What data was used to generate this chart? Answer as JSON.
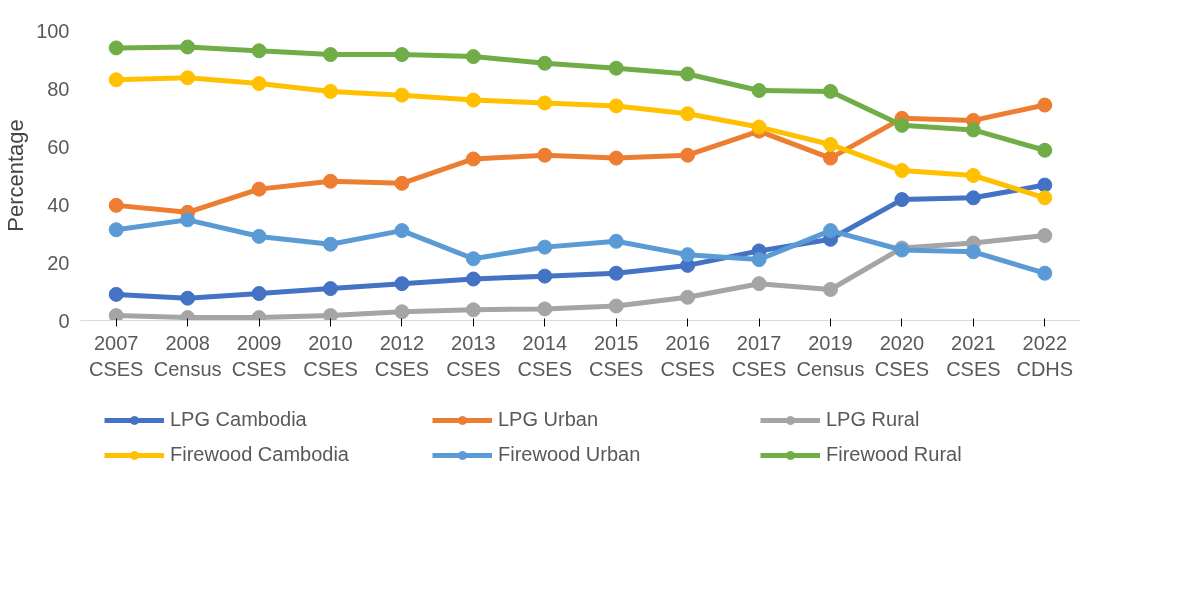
{
  "chart_data": {
    "type": "line",
    "ylabel": "Percentage",
    "categories": [
      "2007\nCSES",
      "2008\nCensus",
      "2009\nCSES",
      "2010\nCSES",
      "2012\nCSES",
      "2013\nCSES",
      "2014\nCSES",
      "2015\nCSES",
      "2016\nCSES",
      "2017\nCSES",
      "2019\nCensus",
      "2020\nCSES",
      "2021\nCSES",
      "2022\nCDHS"
    ],
    "ylim": [
      0,
      100
    ],
    "yticks": [
      0,
      20,
      40,
      60,
      80,
      100
    ],
    "grid": false,
    "legend": "bottom",
    "marker": "circle",
    "line_style": "solid",
    "series": [
      {
        "name": "LPG Cambodia",
        "color": "#4472c4",
        "values": [
          9,
          7.7,
          9.3,
          11,
          12.7,
          14.3,
          15.3,
          16.3,
          19,
          24,
          28,
          41.7,
          42.3,
          46.7
        ]
      },
      {
        "name": "LPG Urban",
        "color": "#ed7d31",
        "values": [
          39.7,
          37.3,
          45.3,
          48,
          47.3,
          55.7,
          57,
          56,
          57,
          65.3,
          56,
          69.7,
          69,
          74.3
        ]
      },
      {
        "name": "LPG Rural",
        "color": "#a5a5a5",
        "values": [
          1.7,
          1,
          1,
          1.7,
          3,
          3.7,
          4,
          5,
          8,
          12.7,
          10.7,
          25,
          26.7,
          29.3
        ]
      },
      {
        "name": "Firewood Cambodia",
        "color": "#ffc000",
        "values": [
          83,
          83.7,
          81.7,
          79,
          77.7,
          76,
          75,
          74,
          71.3,
          66.7,
          60.7,
          51.7,
          50,
          42.3
        ]
      },
      {
        "name": "Firewood Urban",
        "color": "#5b9bd5",
        "values": [
          31.3,
          34.7,
          29,
          26.3,
          31,
          21.3,
          25.3,
          27.3,
          22.7,
          21,
          31,
          24.3,
          23.7,
          16.3
        ]
      },
      {
        "name": "Firewood Rural",
        "color": "#70ad47",
        "values": [
          94,
          94.3,
          93,
          91.7,
          91.7,
          91,
          88.7,
          87,
          85,
          79.3,
          79,
          67.3,
          65.7,
          58.7
        ]
      }
    ]
  }
}
